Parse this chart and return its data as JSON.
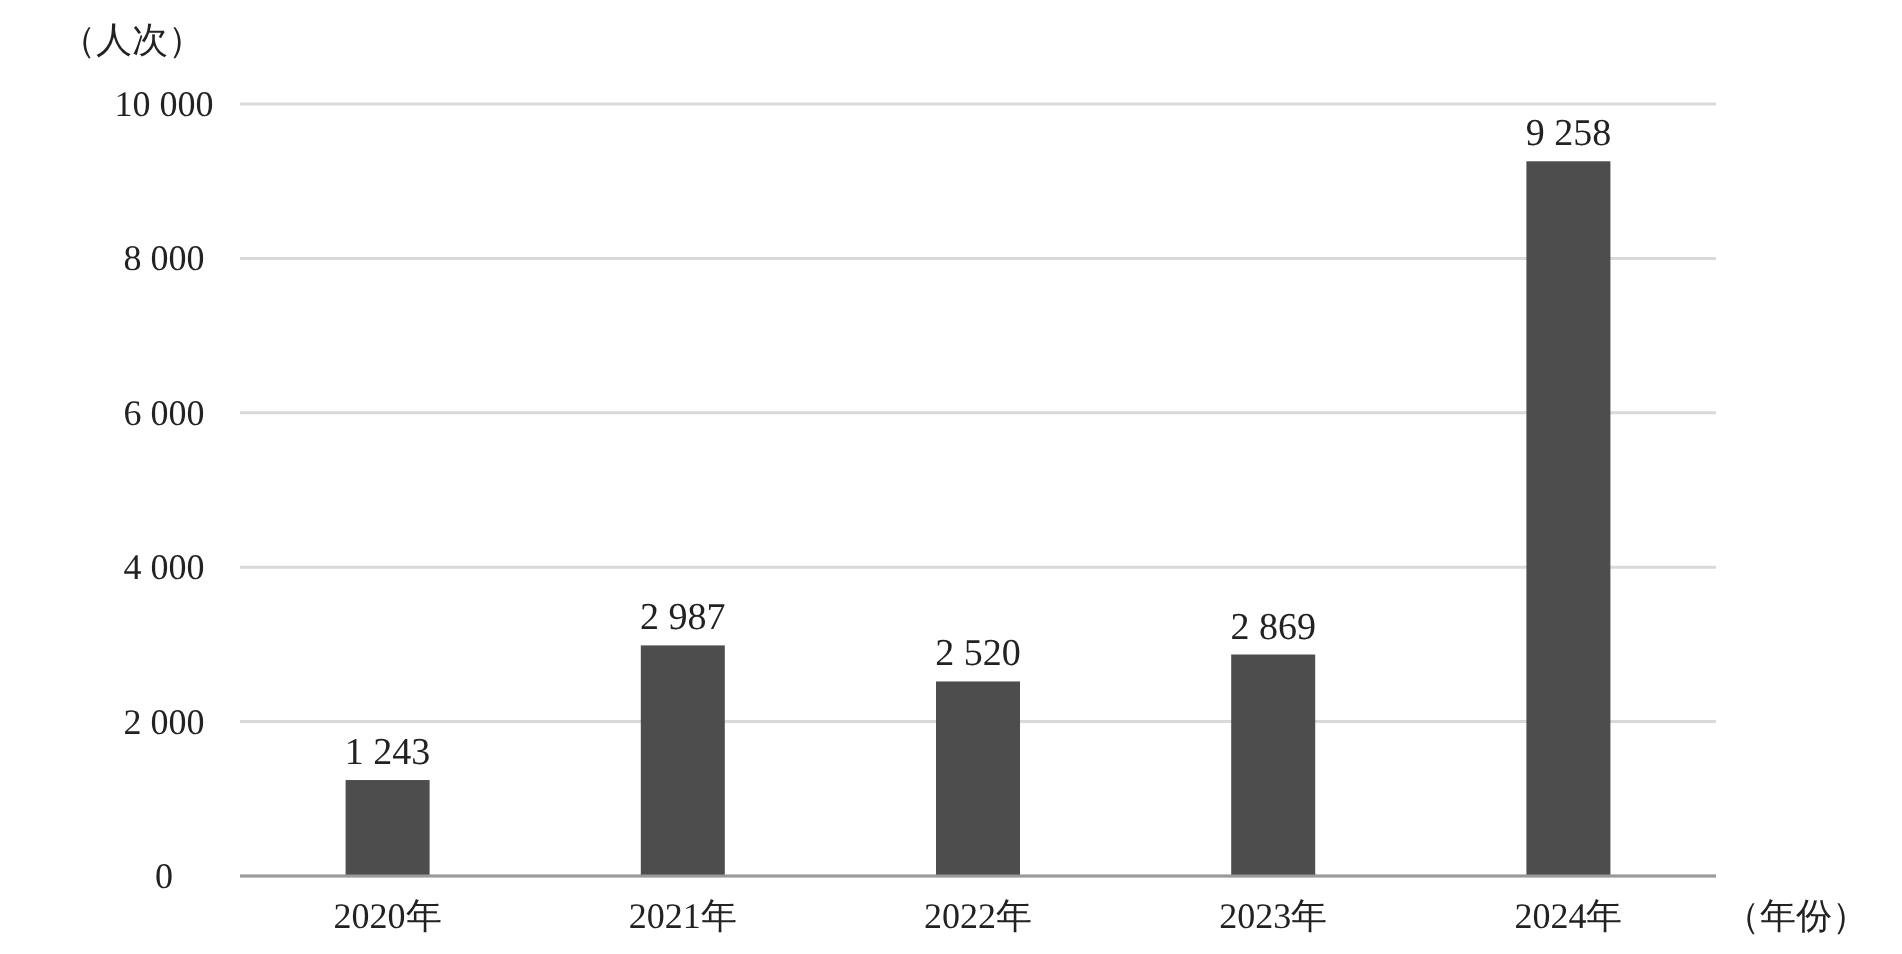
{
  "chart_data": {
    "type": "bar",
    "ylabel": "（人次）",
    "xlabel": "（年份）",
    "categories": [
      "2020年",
      "2021年",
      "2022年",
      "2023年",
      "2024年"
    ],
    "values": [
      1243,
      2987,
      2520,
      2869,
      9258
    ],
    "value_labels": [
      "1 243",
      "2 987",
      "2 520",
      "2 869",
      "9 258"
    ],
    "color": "#4d4d4d",
    "ylim": [
      0,
      10000
    ],
    "yticks": [
      0,
      {
        "value": 2000,
        "label": "2 000"
      },
      {
        "value": 4000,
        "label": "4 000"
      },
      {
        "value": 6000,
        "label": "6 000"
      },
      {
        "value": 8000,
        "label": "8 000"
      },
      {
        "value": 10000,
        "label": "10 000"
      }
    ],
    "grid": "y"
  }
}
